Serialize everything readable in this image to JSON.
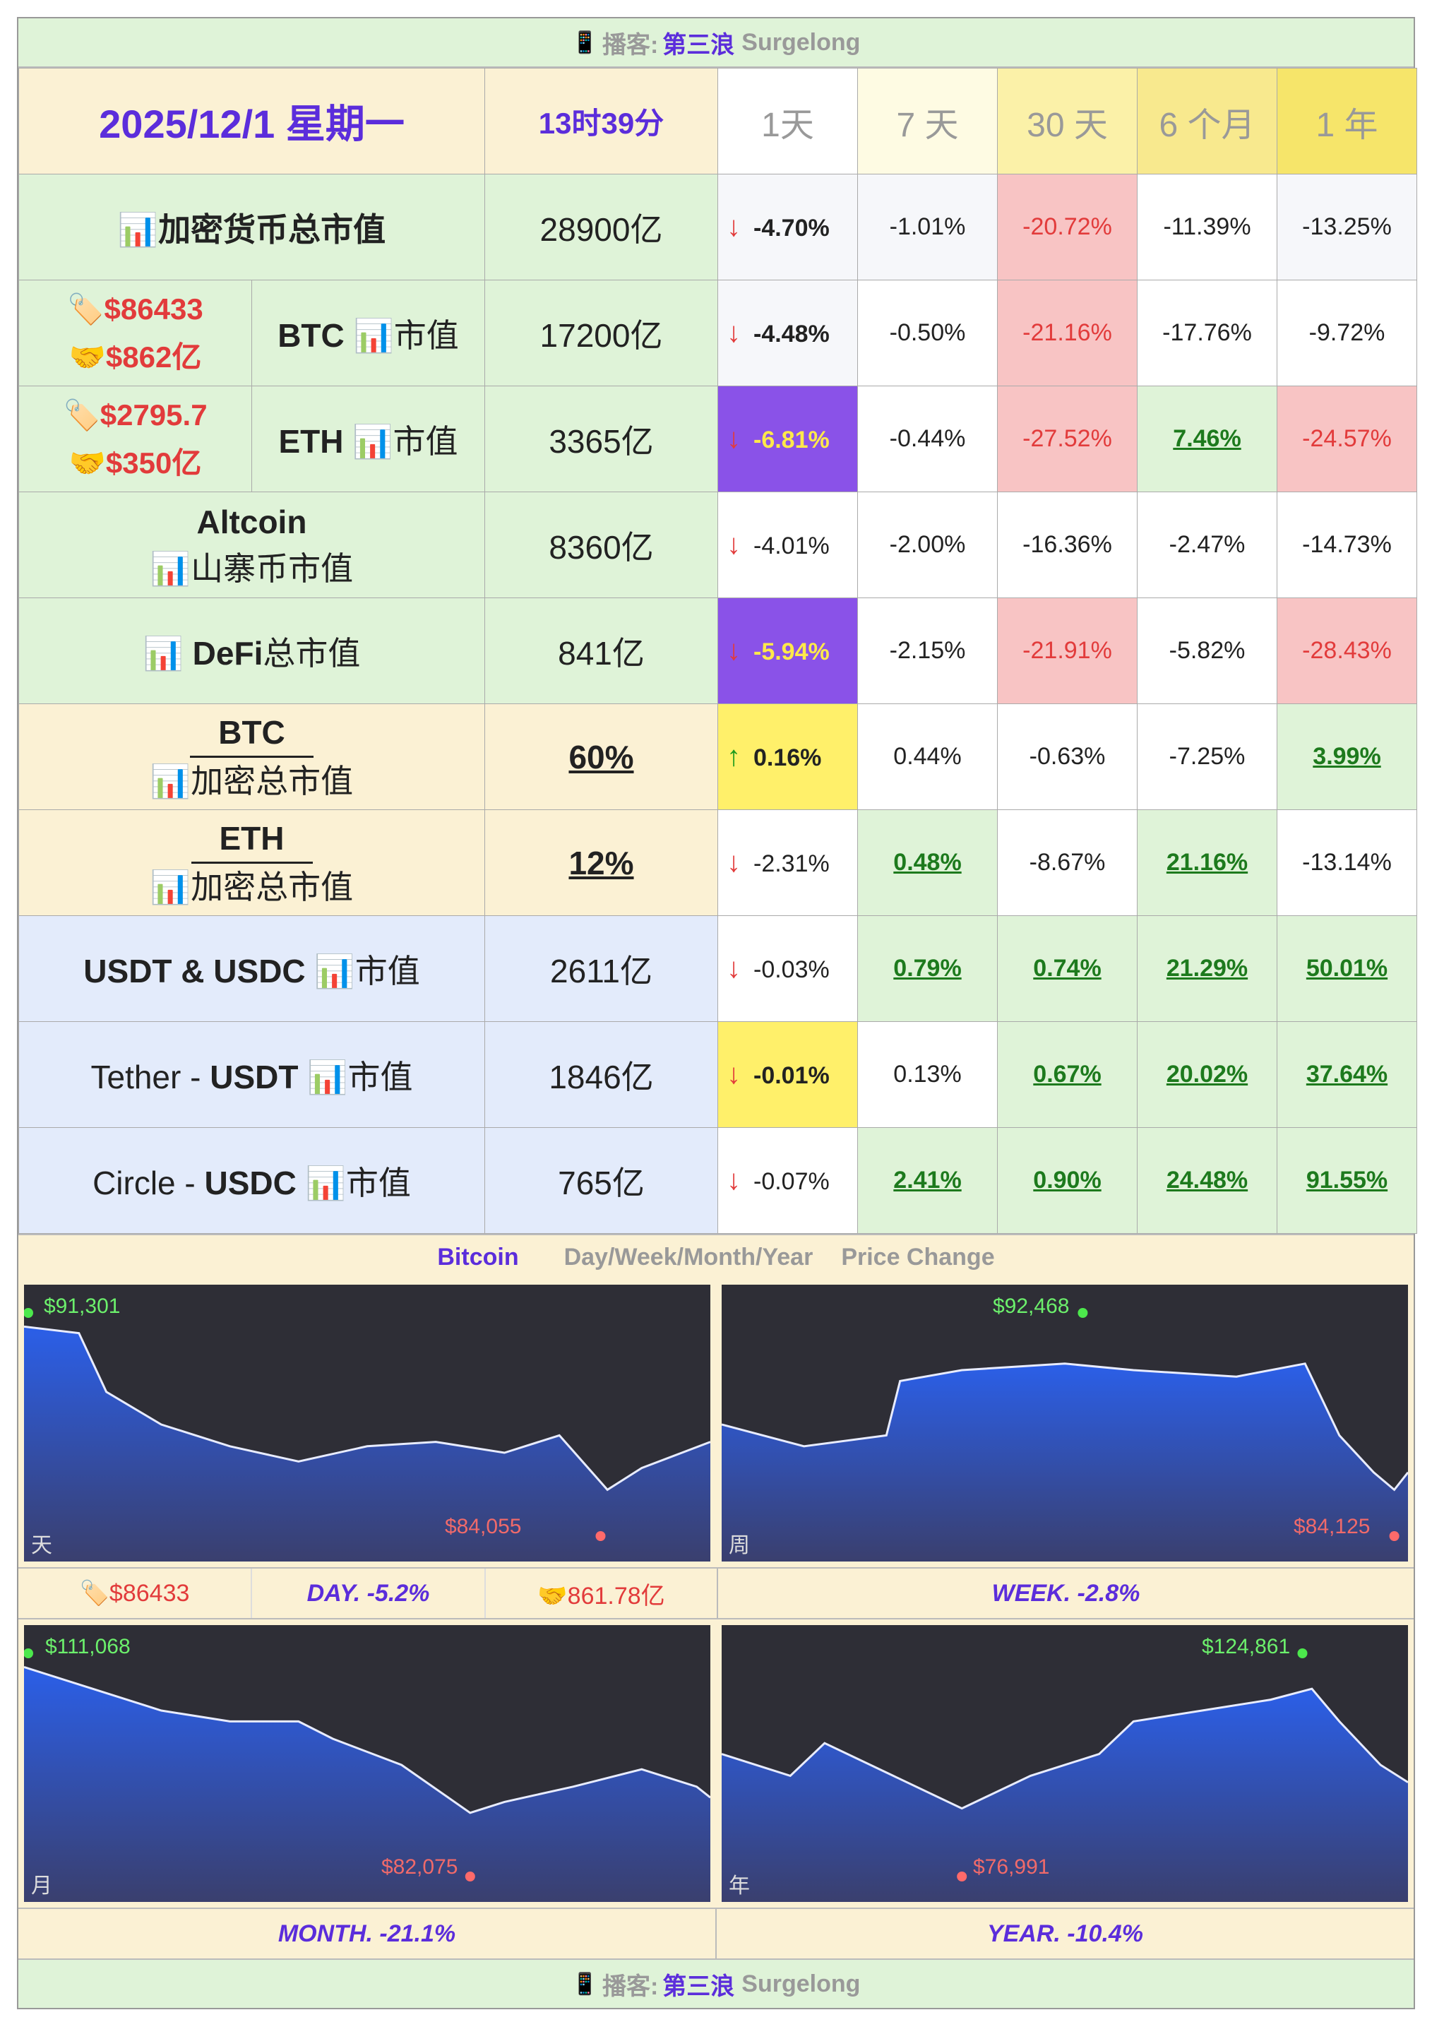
{
  "podcast": {
    "icon": "📱",
    "label": "播客:",
    "name": "第三浪",
    "name_en": "Surgelong"
  },
  "header": {
    "date": "2025/12/1 星期一",
    "time": "13时39分",
    "periods": [
      "1天",
      "7 天",
      "30 天",
      "6 个月",
      "1 年"
    ]
  },
  "rows": [
    {
      "label": "📊加密货币总市值",
      "value": "28900亿",
      "d1": "-4.70%",
      "d1_dir": "down",
      "p": [
        "-1.01%",
        "-20.72%",
        "-11.39%",
        "-13.25%"
      ]
    },
    {
      "price": "🏷️$86433",
      "vol": "🤝$862亿",
      "label_b": "BTC",
      "label_n": "📊市值",
      "value": "17200亿",
      "d1": "-4.48%",
      "d1_dir": "down",
      "p": [
        "-0.50%",
        "-21.16%",
        "-17.76%",
        "-9.72%"
      ]
    },
    {
      "price": "🏷️$2795.7",
      "vol": "🤝$350亿",
      "label_b": "ETH",
      "label_n": "📊市值",
      "value": "3365亿",
      "d1": "-6.81%",
      "d1_dir": "down",
      "p": [
        "-0.44%",
        "-27.52%",
        "7.46%",
        "-24.57%"
      ]
    },
    {
      "label_b": "Altcoin",
      "label_n": "📊山寨币市值",
      "value": "8360亿",
      "d1": "-4.01%",
      "d1_dir": "down",
      "p": [
        "-2.00%",
        "-16.36%",
        "-2.47%",
        "-14.73%"
      ]
    },
    {
      "label_b": "📊 DeFi",
      "label_n": "总市值",
      "value": "841亿",
      "d1": "-5.94%",
      "d1_dir": "down",
      "p": [
        "-2.15%",
        "-21.91%",
        "-5.82%",
        "-28.43%"
      ]
    },
    {
      "label_b": "BTC",
      "label_n": "📊加密总市值",
      "value": "60%",
      "d1": "0.16%",
      "d1_dir": "up",
      "p": [
        "0.44%",
        "-0.63%",
        "-7.25%",
        "3.99%"
      ]
    },
    {
      "label_b": "ETH",
      "label_n": "📊加密总市值",
      "value": "12%",
      "d1": "-2.31%",
      "d1_dir": "down",
      "p": [
        "0.48%",
        "-8.67%",
        "21.16%",
        "-13.14%"
      ]
    },
    {
      "label_b": "USDT & USDC",
      "label_n": "📊市值",
      "value": "2611亿",
      "d1": "-0.03%",
      "d1_dir": "down",
      "p": [
        "0.79%",
        "0.74%",
        "21.29%",
        "50.01%"
      ]
    },
    {
      "label_pre": "Tether - ",
      "label_b": "USDT",
      "label_n": "📊市值",
      "value": "1846亿",
      "d1": "-0.01%",
      "d1_dir": "down",
      "p": [
        "0.13%",
        "0.67%",
        "20.02%",
        "37.64%"
      ]
    },
    {
      "label_pre": "Circle - ",
      "label_b": "USDC",
      "label_n": "📊市值",
      "value": "765亿",
      "d1": "-0.07%",
      "d1_dir": "down",
      "p": [
        "2.41%",
        "0.90%",
        "24.48%",
        "91.55%"
      ]
    }
  ],
  "caption": {
    "bitcoin": "Bitcoin",
    "dwmy": "Day/Week/Month/Year",
    "pc": "Price Change"
  },
  "charts": {
    "day": {
      "max": "$91,301",
      "min": "$84,055",
      "corner": "天"
    },
    "week": {
      "max": "$92,468",
      "min": "$84,125",
      "corner": "周"
    },
    "month": {
      "max": "$111,068",
      "min": "$82,075",
      "corner": "月"
    },
    "year": {
      "max": "$124,861",
      "min": "$76,991",
      "corner": "年"
    }
  },
  "summary": {
    "price": "🏷️$86433",
    "day": "DAY.  -5.2%",
    "vol": "🤝861.78亿",
    "week": "WEEK.  -2.8%",
    "month": "MONTH.  -21.1%",
    "year": "YEAR.  -10.4%"
  }
}
